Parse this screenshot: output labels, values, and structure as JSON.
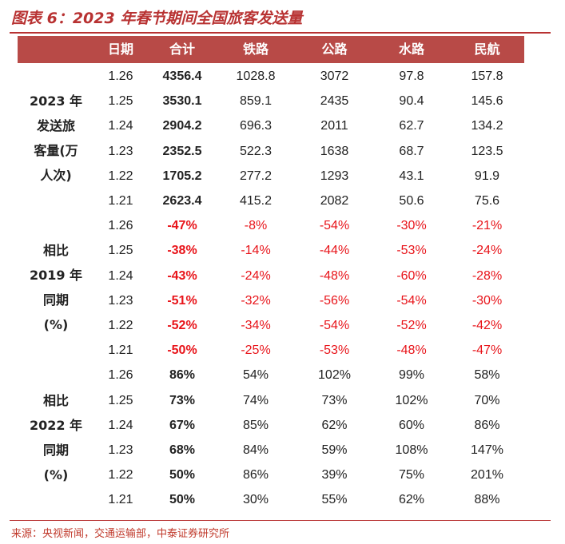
{
  "title": "图表 6：2023 年春节期间全国旅客发送量",
  "headers": [
    "日期",
    "合计",
    "铁路",
    "公路",
    "水路",
    "民航"
  ],
  "groups": [
    {
      "label_lines": [
        "2023 年",
        "发送旅",
        "客量(万",
        "人次)"
      ],
      "rows": [
        {
          "date": "1.26",
          "total": "4356.4",
          "rail": "1028.8",
          "road": "3072",
          "water": "97.8",
          "air": "157.8"
        },
        {
          "date": "1.25",
          "total": "3530.1",
          "rail": "859.1",
          "road": "2435",
          "water": "90.4",
          "air": "145.6"
        },
        {
          "date": "1.24",
          "total": "2904.2",
          "rail": "696.3",
          "road": "2011",
          "water": "62.7",
          "air": "134.2"
        },
        {
          "date": "1.23",
          "total": "2352.5",
          "rail": "522.3",
          "road": "1638",
          "water": "68.7",
          "air": "123.5"
        },
        {
          "date": "1.22",
          "total": "1705.2",
          "rail": "277.2",
          "road": "1293",
          "water": "43.1",
          "air": "91.9"
        },
        {
          "date": "1.21",
          "total": "2623.4",
          "rail": "415.2",
          "road": "2082",
          "water": "50.6",
          "air": "75.6"
        }
      ]
    },
    {
      "label_lines": [
        "相比",
        "2019 年",
        "同期",
        "(%)"
      ],
      "rows": [
        {
          "date": "1.26",
          "total": "-47%",
          "rail": "-8%",
          "road": "-54%",
          "water": "-30%",
          "air": "-21%"
        },
        {
          "date": "1.25",
          "total": "-38%",
          "rail": "-14%",
          "road": "-44%",
          "water": "-53%",
          "air": "-24%"
        },
        {
          "date": "1.24",
          "total": "-43%",
          "rail": "-24%",
          "road": "-48%",
          "water": "-60%",
          "air": "-28%"
        },
        {
          "date": "1.23",
          "total": "-51%",
          "rail": "-32%",
          "road": "-56%",
          "water": "-54%",
          "air": "-30%"
        },
        {
          "date": "1.22",
          "total": "-52%",
          "rail": "-34%",
          "road": "-54%",
          "water": "-52%",
          "air": "-42%"
        },
        {
          "date": "1.21",
          "total": "-50%",
          "rail": "-25%",
          "road": "-53%",
          "water": "-48%",
          "air": "-47%"
        }
      ]
    },
    {
      "label_lines": [
        "相比",
        "2022 年",
        "同期",
        "(%)"
      ],
      "rows": [
        {
          "date": "1.26",
          "total": "86%",
          "rail": "54%",
          "road": "102%",
          "water": "99%",
          "air": "58%"
        },
        {
          "date": "1.25",
          "total": "73%",
          "rail": "74%",
          "road": "73%",
          "water": "102%",
          "air": "70%"
        },
        {
          "date": "1.24",
          "total": "67%",
          "rail": "85%",
          "road": "62%",
          "water": "60%",
          "air": "86%"
        },
        {
          "date": "1.23",
          "total": "68%",
          "rail": "84%",
          "road": "59%",
          "water": "108%",
          "air": "147%"
        },
        {
          "date": "1.22",
          "total": "50%",
          "rail": "86%",
          "road": "39%",
          "water": "75%",
          "air": "201%"
        },
        {
          "date": "1.21",
          "total": "50%",
          "rail": "30%",
          "road": "55%",
          "water": "62%",
          "air": "88%"
        }
      ]
    }
  ],
  "source": "来源：央视新闻，交通运输部，中泰证券研究所",
  "colors": {
    "accent": "#b83232",
    "header_bg": "#b84a47",
    "negative": "#e8141a"
  }
}
